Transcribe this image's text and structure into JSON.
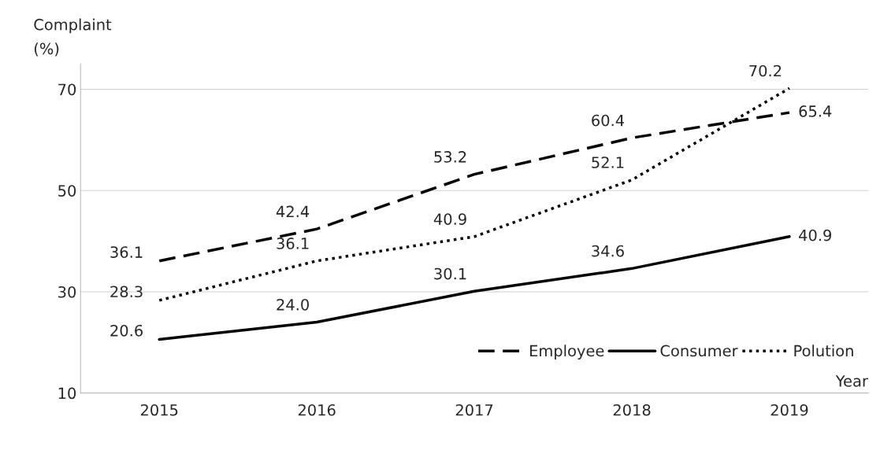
{
  "chart_data": {
    "type": "line",
    "ylabel": "Complaint\n(%)",
    "xlabel": "Year",
    "categories": [
      "2015",
      "2016",
      "2017",
      "2018",
      "2019"
    ],
    "series": [
      {
        "name": "Employee",
        "color": "#000000",
        "line_style": "dashed",
        "values": [
          36.1,
          42.4,
          53.2,
          60.4,
          65.4
        ],
        "value_labels": [
          "36.1",
          "42.4",
          "53.2",
          "60.4",
          "65.4"
        ]
      },
      {
        "name": "Consumer",
        "color": "#000000",
        "line_style": "solid",
        "values": [
          20.6,
          24.0,
          30.1,
          34.6,
          40.9
        ],
        "value_labels": [
          "20.6",
          "24.0",
          "30.1",
          "34.6",
          "40.9"
        ]
      },
      {
        "name": "Polution",
        "color": "#000000",
        "line_style": "dotted",
        "values": [
          28.3,
          36.1,
          40.9,
          52.1,
          70.2
        ],
        "value_labels": [
          "28.3",
          "36.1",
          "40.9",
          "52.1",
          "70.2"
        ]
      }
    ],
    "ylim": [
      10,
      75
    ],
    "yticks": [
      10,
      30,
      50,
      70
    ],
    "grid": "y",
    "legend": "bottom right",
    "marker": "none"
  }
}
